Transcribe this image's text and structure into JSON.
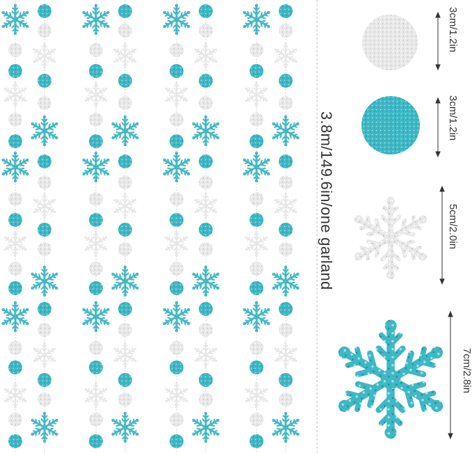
{
  "garland_length_label": "3.8m/149.6in/one garland",
  "size_labels": [
    "3cm/1.2in",
    "3cm/1.2in",
    "5cm/2.0in",
    "7cm/2.8in"
  ],
  "colors": {
    "teal": "#3fb7c4",
    "teal_light": "#8fdde3",
    "silver": "#e6e6e6",
    "silver_dark": "#c9c9c9",
    "string": "#cfcfcf",
    "divider": "#bdbdbd",
    "arrow": "#333333"
  },
  "items": [
    {
      "name": "silver-glitter-circle-3cm",
      "icon": "silver-circle-icon"
    },
    {
      "name": "teal-glitter-circle-3cm",
      "icon": "teal-circle-icon"
    },
    {
      "name": "silver-glitter-snowflake-5cm",
      "icon": "silver-snowflake-icon"
    },
    {
      "name": "teal-glitter-snowflake-7cm",
      "icon": "teal-snowflake-icon"
    }
  ]
}
